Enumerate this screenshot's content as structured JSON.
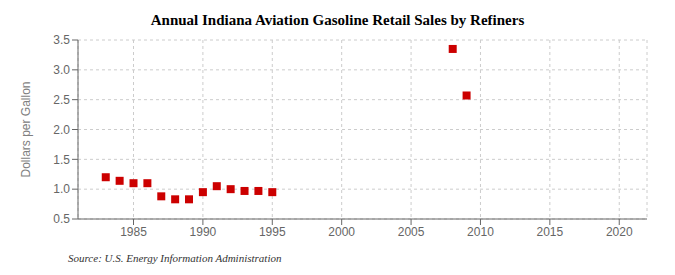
{
  "chart_data": {
    "type": "scatter",
    "title": "Annual Indiana Aviation Gasoline Retail Sales by Refiners",
    "y_label": "Dollars per Gallon",
    "annotation": "Source: U.S. Energy Information Administration",
    "x": [
      1983,
      1984,
      1985,
      1986,
      1987,
      1988,
      1989,
      1990,
      1991,
      1992,
      1993,
      1994,
      1995,
      2008,
      2009
    ],
    "values": [
      1.2,
      1.14,
      1.1,
      1.1,
      0.88,
      0.83,
      0.83,
      0.95,
      1.05,
      1.0,
      0.97,
      0.97,
      0.95,
      3.35,
      2.57
    ],
    "color": "#cc0000",
    "marker": "square",
    "xlim": [
      1981,
      2022
    ],
    "xticks": [
      1985,
      1990,
      1995,
      2000,
      2005,
      2010,
      2015,
      2020
    ],
    "ylim": [
      0.5,
      3.5
    ],
    "yticks": [
      0.5,
      {
        "value": 1.0,
        "label": "1.0"
      },
      1.5,
      {
        "value": 2.0,
        "label": "2.0"
      },
      2.5,
      {
        "value": 3.0,
        "label": "3.0"
      },
      3.5
    ],
    "grid": true
  }
}
